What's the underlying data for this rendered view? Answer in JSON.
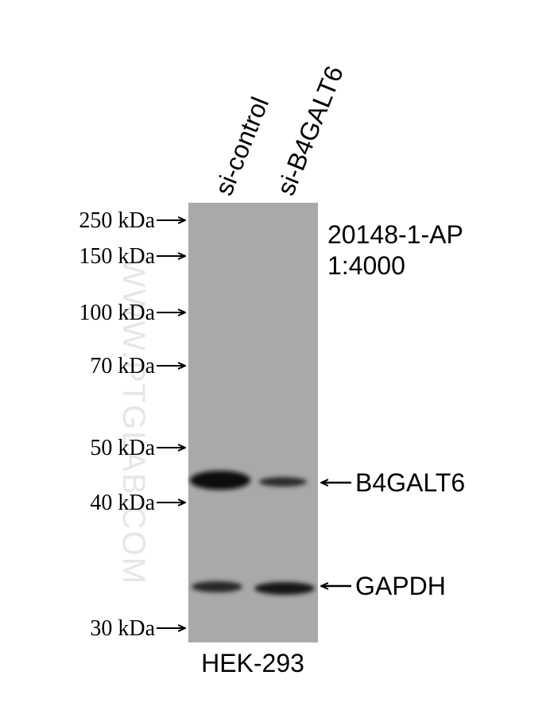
{
  "lanes": [
    "si-control",
    "si-B4GALT6"
  ],
  "markers": [
    "250 kDa",
    "150 kDa",
    "100 kDa",
    "70 kDa",
    "50 kDa",
    "40 kDa",
    "30 kDa"
  ],
  "antibody": {
    "catalog": "20148-1-AP",
    "dilution": "1:4000"
  },
  "bands": [
    "B4GALT6",
    "GAPDH"
  ],
  "cell_line": "HEK-293",
  "watermark": "WWW.PTGLAB.COM"
}
